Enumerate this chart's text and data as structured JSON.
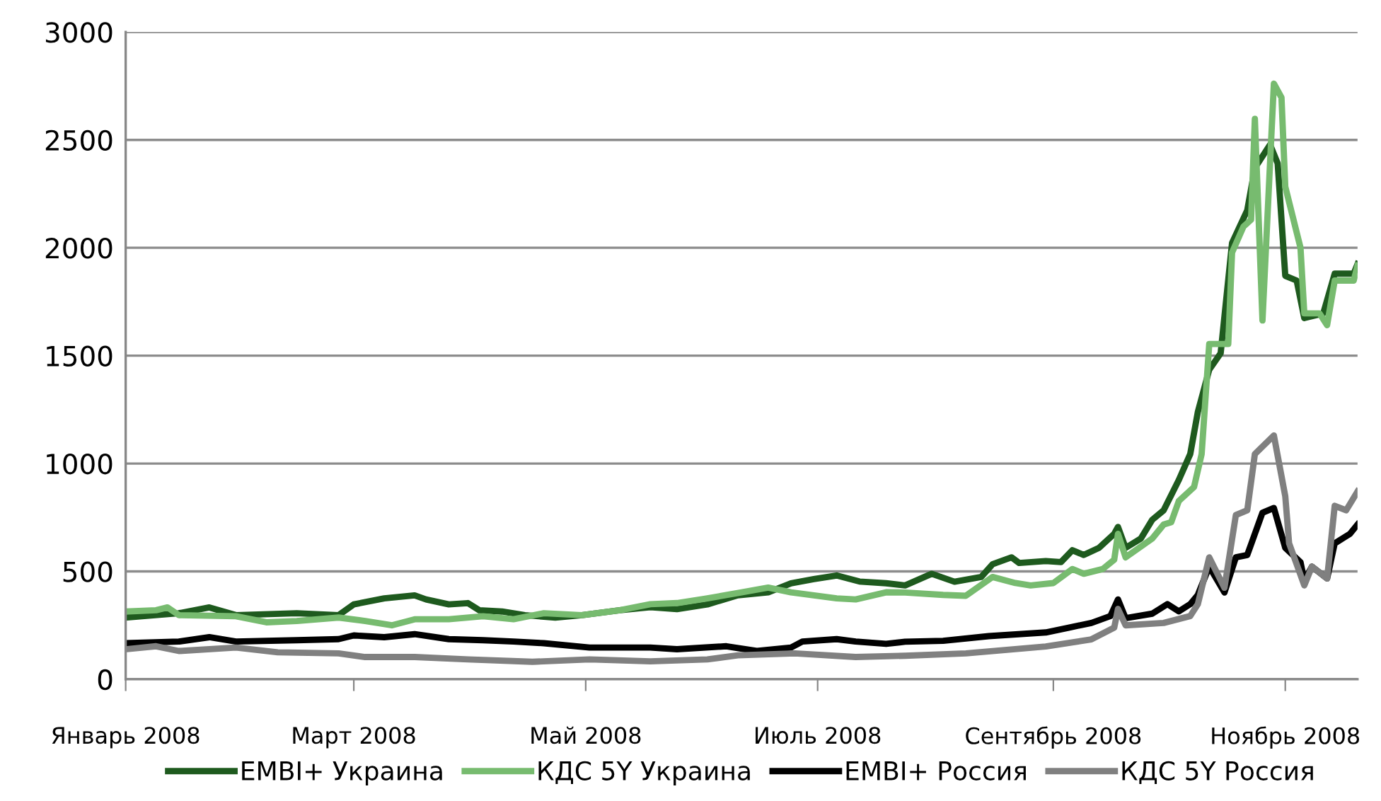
{
  "chart_data": {
    "type": "line",
    "xlim": [
      "2008-01-01",
      "2008-11-20"
    ],
    "ylim": [
      0,
      3000
    ],
    "yticks": [
      0,
      500,
      1000,
      1500,
      2000,
      2500,
      3000
    ],
    "xticks": [
      {
        "value": "2008-01-01",
        "label": "Январь 2008"
      },
      {
        "value": "2008-03-01",
        "label": "Март 2008"
      },
      {
        "value": "2008-05-01",
        "label": "Май 2008"
      },
      {
        "value": "2008-07-01",
        "label": "Июль 2008"
      },
      {
        "value": "2008-09-01",
        "label": "Сентябрь 2008"
      },
      {
        "value": "2008-11-01",
        "label": "Ноябрь 2008"
      }
    ],
    "grid": "y",
    "legend": "bottom",
    "marker": "none",
    "line_style": "solid",
    "series": [
      {
        "name": "EMBI+ Украина",
        "color": "#1e5a1e",
        "x": [
          "2008-01-01",
          "2008-01-15",
          "2008-01-23",
          "2008-01-30",
          "2008-02-15",
          "2008-02-26",
          "2008-03-01",
          "2008-03-09",
          "2008-03-17",
          "2008-03-20",
          "2008-03-26",
          "2008-03-31",
          "2008-04-03",
          "2008-04-09",
          "2008-04-15",
          "2008-04-23",
          "2008-04-30",
          "2008-05-10",
          "2008-05-18",
          "2008-05-25",
          "2008-06-02",
          "2008-06-10",
          "2008-06-18",
          "2008-06-24",
          "2008-06-30",
          "2008-07-06",
          "2008-07-12",
          "2008-07-19",
          "2008-07-24",
          "2008-07-31",
          "2008-08-06",
          "2008-08-13",
          "2008-08-16",
          "2008-08-21",
          "2008-08-23",
          "2008-08-30",
          "2008-09-03",
          "2008-09-06",
          "2008-09-09",
          "2008-09-13",
          "2008-09-17",
          "2008-09-18",
          "2008-09-20",
          "2008-09-24",
          "2008-09-27",
          "2008-09-30",
          "2008-10-04",
          "2008-10-07",
          "2008-10-09",
          "2008-10-12",
          "2008-10-15",
          "2008-10-18",
          "2008-10-22",
          "2008-10-24",
          "2008-10-28",
          "2008-10-30",
          "2008-11-01",
          "2008-11-04",
          "2008-11-06",
          "2008-11-11",
          "2008-11-14",
          "2008-11-19",
          "2008-11-20"
        ],
        "values": [
          286,
          306,
          333,
          297,
          306,
          297,
          347,
          375,
          389,
          370,
          347,
          353,
          320,
          314,
          297,
          286,
          297,
          320,
          334,
          325,
          347,
          389,
          403,
          445,
          464,
          481,
          453,
          445,
          435,
          489,
          452,
          474,
          533,
          565,
          539,
          548,
          543,
          598,
          576,
          609,
          674,
          706,
          609,
          652,
          739,
          783,
          924,
          1044,
          1239,
          1435,
          1511,
          2022,
          2174,
          2370,
          2478,
          2391,
          1870,
          1848,
          1674,
          1696,
          1880,
          1880,
          1924
        ]
      },
      {
        "name": "КДС 5Y Украина",
        "color": "#77bb6f",
        "x": [
          "2008-01-01",
          "2008-01-09",
          "2008-01-12",
          "2008-01-15",
          "2008-01-30",
          "2008-02-07",
          "2008-02-15",
          "2008-02-26",
          "2008-03-04",
          "2008-03-11",
          "2008-03-17",
          "2008-03-26",
          "2008-04-04",
          "2008-04-12",
          "2008-04-20",
          "2008-04-30",
          "2008-05-10",
          "2008-05-18",
          "2008-05-25",
          "2008-06-02",
          "2008-06-11",
          "2008-06-18",
          "2008-06-24",
          "2008-07-06",
          "2008-07-11",
          "2008-07-19",
          "2008-07-24",
          "2008-08-03",
          "2008-08-09",
          "2008-08-16",
          "2008-08-22",
          "2008-08-26",
          "2008-09-01",
          "2008-09-06",
          "2008-09-09",
          "2008-09-14",
          "2008-09-17",
          "2008-09-18",
          "2008-09-20",
          "2008-09-27",
          "2008-09-30",
          "2008-10-02",
          "2008-10-04",
          "2008-10-08",
          "2008-10-10",
          "2008-10-12",
          "2008-10-17",
          "2008-10-18",
          "2008-10-21",
          "2008-10-23",
          "2008-10-24",
          "2008-10-26",
          "2008-10-29",
          "2008-10-31",
          "2008-11-01",
          "2008-11-05",
          "2008-11-06",
          "2008-11-10",
          "2008-11-12",
          "2008-11-14",
          "2008-11-19",
          "2008-11-20"
        ],
        "values": [
          314,
          320,
          333,
          297,
          292,
          264,
          270,
          286,
          270,
          250,
          278,
          278,
          292,
          278,
          306,
          297,
          320,
          348,
          353,
          375,
          403,
          425,
          403,
          375,
          370,
          403,
          402,
          391,
          387,
          474,
          446,
          435,
          446,
          511,
          489,
          511,
          554,
          674,
          565,
          652,
          717,
          728,
          826,
          891,
          1044,
          1554,
          1554,
          1978,
          2098,
          2130,
          2598,
          1663,
          2761,
          2696,
          2283,
          2000,
          1696,
          1696,
          1641,
          1848,
          1848,
          1917
        ]
      },
      {
        "name": "EMBI+ Россия",
        "color": "#000000",
        "x": [
          "2008-01-01",
          "2008-01-15",
          "2008-01-23",
          "2008-01-30",
          "2008-02-15",
          "2008-02-26",
          "2008-03-01",
          "2008-03-09",
          "2008-03-17",
          "2008-03-26",
          "2008-04-04",
          "2008-04-12",
          "2008-04-20",
          "2008-05-02",
          "2008-05-18",
          "2008-05-25",
          "2008-06-07",
          "2008-06-15",
          "2008-06-24",
          "2008-06-27",
          "2008-07-06",
          "2008-07-11",
          "2008-07-19",
          "2008-07-24",
          "2008-08-03",
          "2008-08-15",
          "2008-08-30",
          "2008-09-05",
          "2008-09-11",
          "2008-09-16",
          "2008-09-18",
          "2008-09-20",
          "2008-09-27",
          "2008-10-01",
          "2008-10-04",
          "2008-10-07",
          "2008-10-09",
          "2008-10-12",
          "2008-10-16",
          "2008-10-19",
          "2008-10-22",
          "2008-10-26",
          "2008-10-29",
          "2008-11-01",
          "2008-11-05",
          "2008-11-06",
          "2008-11-08",
          "2008-11-12",
          "2008-11-14",
          "2008-11-18",
          "2008-11-20"
        ],
        "values": [
          167,
          175,
          195,
          175,
          181,
          186,
          203,
          195,
          209,
          186,
          181,
          175,
          167,
          147,
          147,
          139,
          153,
          131,
          147,
          175,
          186,
          175,
          164,
          174,
          178,
          200,
          217,
          239,
          261,
          293,
          370,
          283,
          304,
          348,
          315,
          348,
          391,
          522,
          402,
          565,
          576,
          772,
          794,
          609,
          543,
          457,
          522,
          467,
          630,
          674,
          717
        ]
      },
      {
        "name": "КДС 5Y Россия",
        "color": "#808080",
        "x": [
          "2008-01-01",
          "2008-01-09",
          "2008-01-15",
          "2008-01-30",
          "2008-02-10",
          "2008-02-26",
          "2008-03-04",
          "2008-03-17",
          "2008-03-31",
          "2008-04-17",
          "2008-05-02",
          "2008-05-18",
          "2008-06-02",
          "2008-06-10",
          "2008-06-25",
          "2008-07-11",
          "2008-07-24",
          "2008-08-09",
          "2008-08-30",
          "2008-09-11",
          "2008-09-17",
          "2008-09-18",
          "2008-09-20",
          "2008-09-30",
          "2008-10-07",
          "2008-10-09",
          "2008-10-12",
          "2008-10-16",
          "2008-10-19",
          "2008-10-22",
          "2008-10-24",
          "2008-10-29",
          "2008-11-01",
          "2008-11-02",
          "2008-11-06",
          "2008-11-08",
          "2008-11-12",
          "2008-11-14",
          "2008-11-17",
          "2008-11-20"
        ],
        "values": [
          139,
          153,
          131,
          147,
          125,
          120,
          103,
          103,
          92,
          81,
          92,
          83,
          92,
          111,
          120,
          103,
          109,
          120,
          152,
          185,
          239,
          326,
          250,
          261,
          293,
          348,
          565,
          424,
          761,
          783,
          1044,
          1130,
          848,
          630,
          435,
          522,
          467,
          804,
          783,
          870
        ]
      }
    ]
  }
}
